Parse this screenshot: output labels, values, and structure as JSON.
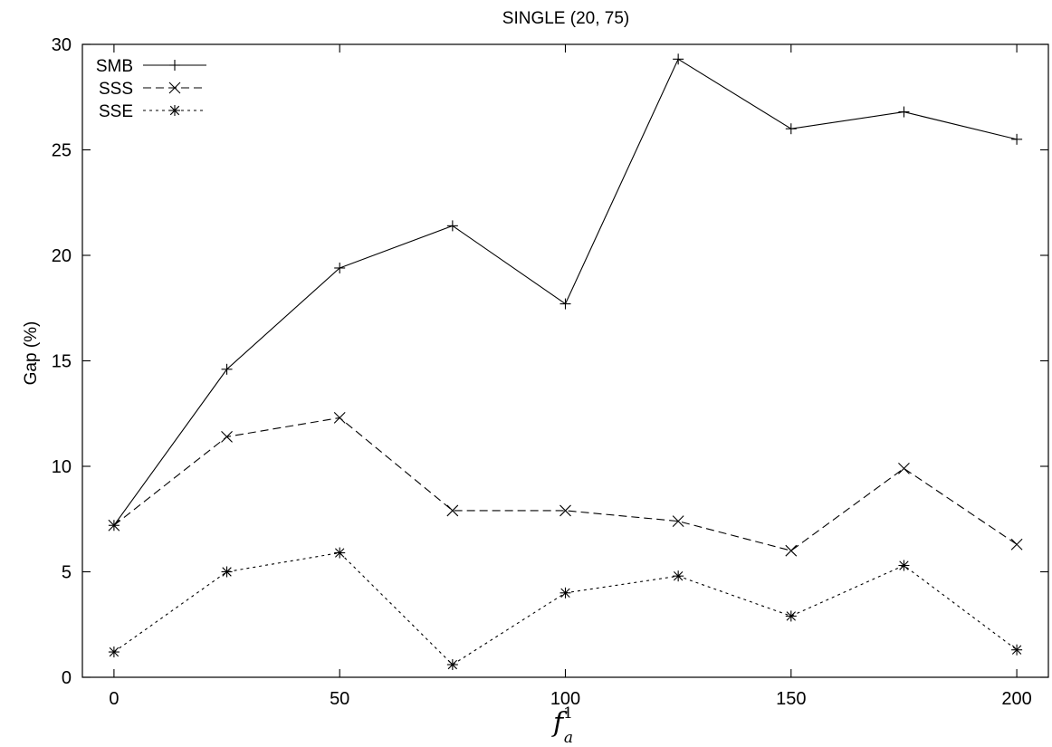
{
  "chart_data": {
    "type": "line",
    "title": "SINGLE (20, 75)",
    "xlabel": {
      "base": "f",
      "sup": "1",
      "sub": "a"
    },
    "ylabel": "Gap (%)",
    "xlim": [
      -7,
      207
    ],
    "ylim": [
      0,
      30
    ],
    "xticks": [
      0,
      50,
      100,
      150,
      200
    ],
    "yticks": [
      0,
      5,
      10,
      15,
      20,
      25,
      30
    ],
    "x": [
      0,
      25,
      50,
      75,
      100,
      125,
      150,
      175,
      200
    ],
    "grid": false,
    "legend_position": "top-left",
    "series": [
      {
        "name": "SMB",
        "marker": "plus",
        "dash": "solid",
        "values": [
          7.2,
          14.6,
          19.4,
          21.4,
          17.7,
          29.3,
          26.0,
          26.8,
          25.5
        ]
      },
      {
        "name": "SSS",
        "marker": "cross",
        "dash": "dashed",
        "values": [
          7.2,
          11.4,
          12.3,
          7.9,
          7.9,
          7.4,
          6.0,
          9.9,
          6.3
        ]
      },
      {
        "name": "SSE",
        "marker": "star",
        "dash": "dotted",
        "values": [
          1.2,
          5.0,
          5.9,
          0.6,
          4.0,
          4.8,
          2.9,
          5.3,
          1.3
        ]
      }
    ]
  }
}
